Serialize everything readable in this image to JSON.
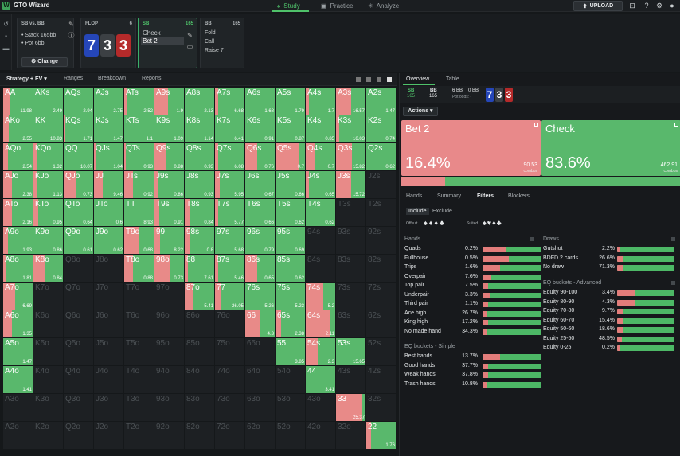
{
  "app": {
    "title": "GTO Wizard"
  },
  "nav": {
    "study": "Study",
    "practice": "Practice",
    "analyze": "Analyze",
    "upload": "UPLOAD"
  },
  "situation": {
    "sb": {
      "title": "SB vs. BB",
      "stack": "Stack 165bb",
      "pot": "Pot 6bb",
      "change": "Change"
    },
    "flop": {
      "title": "FLOP",
      "num": "6",
      "cards": [
        "7",
        "3",
        "3"
      ]
    },
    "sbact": {
      "title": "SB",
      "num": "165",
      "a1": "Check",
      "a2": "Bet 2"
    },
    "bb": {
      "title": "BB",
      "num": "165",
      "a1": "Fold",
      "a2": "Call",
      "a3": "Raise 7"
    }
  },
  "range": {
    "mode": "Strategy + EV",
    "tabs": [
      "Ranges",
      "Breakdown",
      "Reports"
    ]
  },
  "colors": {
    "check": "#59b86c",
    "bet": "#e88a88",
    "blank": "#1d2023"
  },
  "grid": [
    [
      "AA|0.25|11.98",
      "AKs|0|2.49",
      "AQs|0|2.94",
      "AJs|0|2.75",
      "ATs|0.1|2.52",
      "A9s|0.45|1.9",
      "A8s|0|2.13",
      "A7s|0.1|6.68",
      "A6s|0|1.68",
      "A5s|0|1.79",
      "A4s|0.1|1.7",
      "A3s|0.5|16.57",
      "A2s|0|1.47"
    ],
    [
      "AKo|0.2|2.55",
      "KK|0|10.83",
      "KQs|0.05|1.71",
      "KJs|0|1.47",
      "KTs|0|1.1",
      "K9s|0|1.09",
      "K8s|0|1.14",
      "K7s|0|6.41",
      "K6s|0|0.91",
      "K5s|0|0.87",
      "K4s|0|0.85",
      "K3s|0.1|16.03",
      "K2s|0|0.74"
    ],
    [
      "AQo|0.15|2.54",
      "KQo|0.1|1.32",
      "QQ|0|10.07",
      "QJs|0.05|1.04",
      "QTs|0.05|0.93",
      "Q9s|0.4|0.88",
      "Q8s|0|0.93",
      "Q7s|0.1|6.08",
      "Q6s|0.4|0.76",
      "Q5s|0.8|0.7",
      "Q4s|0.3|0.7",
      "Q3s|0.55|15.82",
      "Q2s|0|0.62"
    ],
    [
      "AJo|0.3|2.38",
      "KJo|0.1|1.13",
      "QJo|0.4|0.73",
      "JJ|0.3|9.46",
      "JTs|0.3|0.92",
      "J9s|0.1|0.86",
      "J8s|0|0.93",
      "J7s|0.15|5.95",
      "J6s|0|0.67",
      "J5s|0|0.66",
      "J4s|0.1|0.65",
      "J3s|0.5|15.72",
      "J2s|-|"
    ],
    [
      "ATo|0.3|2.16",
      "KTo|0.15|0.95",
      "QTo|0|0.64",
      "JTo|0|0.6",
      "TT|0|8.93",
      "T9s|0.15|0.91",
      "T8s|0.2|0.84",
      "T7s|0.1|5.77",
      "T6s|0|0.66",
      "T5s|0|0.62",
      "T4s|0|0.62",
      "T3s|-|",
      "T2s|-|"
    ],
    [
      "A9o|0.15|1.93",
      "K9o|0|0.86",
      "Q9o|0|0.61",
      "J9o|0|0.62",
      "T9o|0.5|0.68",
      "99|0.2|8.22",
      "98s|0.2|0.8",
      "97s|0|5.68",
      "96s|0|0.79",
      "95s|0|0.69",
      "94s|-|",
      "93s|-|",
      "92s|-|"
    ],
    [
      "A8o|0.1|1.81",
      "K8o|0.4|0.84",
      "Q8o|-|",
      "J8o|-|",
      "T8o|0.3|0.88",
      "98o|0.5|0.73",
      "88|0.1|7.61",
      "87s|0.1|5.46",
      "86s|0.4|0.65",
      "85s|0|0.62",
      "84s|-|",
      "83s|-|",
      "82s|-|"
    ],
    [
      "A7o|0.4|6.69",
      "K7o|-|",
      "Q7o|-|",
      "J7o|-|",
      "T7o|-|",
      "97o|-|",
      "87o|0.3|5.41",
      "77|0.2|26.05",
      "76s|0|5.26",
      "75s|0|5.23",
      "74s|0.6|5.2",
      "73s|-|",
      "72s|-|"
    ],
    [
      "A6o|0.3|1.35",
      "K6o|-|",
      "Q6o|-|",
      "J6o|-|",
      "T6o|-|",
      "96o|-|",
      "86o|-|",
      "76o|-|",
      "66|0.5|4.3",
      "65s|0.2|2.38",
      "64s|0.8|2.11",
      "63s|-|",
      "62s|-|"
    ],
    [
      "A5o|0|1.47",
      "K5o|-|",
      "Q5o|-|",
      "J5o|-|",
      "T5o|-|",
      "95o|-|",
      "85o|-|",
      "75o|-|",
      "65o|-|",
      "55|0|3.85",
      "54s|0.4|2.3",
      "53s|0|15.65",
      "52s|-|"
    ],
    [
      "A4o|0|1.41",
      "K4o|-|",
      "Q4o|-|",
      "J4o|-|",
      "T4o|-|",
      "94o|-|",
      "84o|-|",
      "74o|-|",
      "64o|-|",
      "54o|-|",
      "44|0|3.41",
      "43s|-|",
      "42s|-|"
    ],
    [
      "A3o|-|",
      "K3o|-|",
      "Q3o|-|",
      "J3o|-|",
      "T3o|-|",
      "93o|-|",
      "83o|-|",
      "73o|-|",
      "63o|-|",
      "53o|-|",
      "43o|-|",
      "33|0.9|25.37",
      "32s|-|"
    ],
    [
      "A2o|-|",
      "K2o|-|",
      "Q2o|-|",
      "J2o|-|",
      "T2o|-|",
      "92o|-|",
      "82o|-|",
      "72o|-|",
      "62o|-|",
      "52o|-|",
      "42o|-|",
      "32o|-|",
      "22|0.15|1.76"
    ]
  ],
  "overview": {
    "tabs": [
      "Overview",
      "Table"
    ],
    "sb": "SB",
    "sbstack": "165",
    "bb": "BB",
    "bbstack": "165",
    "pot1": "6 BB",
    "pot2": "0 BB",
    "potodds": "Pot odds: -",
    "actions": "Actions",
    "bet": {
      "title": "Bet 2",
      "pct": "16.4%",
      "ev": "90.53",
      "combos": "combos"
    },
    "check": {
      "title": "Check",
      "pct": "83.6%",
      "ev": "462.91",
      "combos": "combos"
    }
  },
  "filters": {
    "tabs": [
      "Hands",
      "Summary",
      "Filters",
      "Blockers"
    ],
    "include": "Include",
    "exclude": "Exclude",
    "offsuit": "Offsuit",
    "suited": "Suited",
    "hands_hdr": "Hands",
    "draws_hdr": "Draws",
    "eq_simple_hdr": "EQ buckets - Simple",
    "eq_adv_hdr": "EQ buckets - Advanced",
    "hands": [
      [
        "Quads",
        "0.2%",
        0.4
      ],
      [
        "Fullhouse",
        "0.5%",
        0.45
      ],
      [
        "Trips",
        "1.6%",
        0.3
      ],
      [
        "Overpair",
        "7.6%",
        0.15
      ],
      [
        "Top pair",
        "7.5%",
        0.1
      ],
      [
        "Underpair",
        "3.3%",
        0.12
      ],
      [
        "Third pair",
        "1.1%",
        0.1
      ],
      [
        "Ace high",
        "26.7%",
        0.08
      ],
      [
        "King high",
        "17.2%",
        0.1
      ],
      [
        "No made hand",
        "34.3%",
        0.08
      ]
    ],
    "eq_simple": [
      [
        "Best hands",
        "13.7%",
        0.3
      ],
      [
        "Good hands",
        "37.7%",
        0.1
      ],
      [
        "Weak hands",
        "37.8%",
        0.1
      ],
      [
        "Trash hands",
        "10.8%",
        0.08
      ]
    ],
    "draws": [
      [
        "Gutshot",
        "2.2%",
        0.05
      ],
      [
        "BDFD 2 cards",
        "26.6%",
        0.1
      ],
      [
        "No draw",
        "71.3%",
        0.1
      ]
    ],
    "eq_adv": [
      [
        "Equity 90-100",
        "3.4%",
        0.3
      ],
      [
        "Equity 80-90",
        "4.3%",
        0.3
      ],
      [
        "Equity 70-80",
        "9.7%",
        0.1
      ],
      [
        "Equity 60-70",
        "15.4%",
        0.1
      ],
      [
        "Equity 50-60",
        "18.6%",
        0.1
      ],
      [
        "Equity 25-50",
        "48.5%",
        0.08
      ],
      [
        "Equity 0-25",
        "0.2%",
        0.05
      ]
    ]
  }
}
